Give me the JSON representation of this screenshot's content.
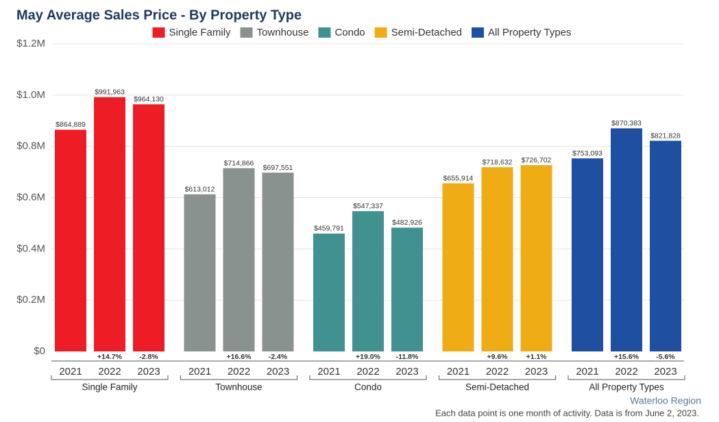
{
  "chart_data": {
    "type": "bar",
    "title": "May Average Sales Price - By Property Type",
    "categories": [
      "2021",
      "2022",
      "2023"
    ],
    "series": [
      {
        "name": "Single Family",
        "color": "#ee1c25",
        "values": [
          864889,
          991963,
          964130
        ],
        "value_labels": [
          "$864,889",
          "$991,963",
          "$964,130"
        ],
        "changes": [
          null,
          "+14.7%",
          "-2.8%"
        ]
      },
      {
        "name": "Townhouse",
        "color": "#8a9290",
        "values": [
          613012,
          714866,
          697551
        ],
        "value_labels": [
          "$613,012",
          "$714,866",
          "$697,551"
        ],
        "changes": [
          null,
          "+16.6%",
          "-2.4%"
        ]
      },
      {
        "name": "Condo",
        "color": "#419191",
        "values": [
          459791,
          547337,
          482926
        ],
        "value_labels": [
          "$459,791",
          "$547,337",
          "$482,926"
        ],
        "changes": [
          null,
          "+19.0%",
          "-11.8%"
        ]
      },
      {
        "name": "Semi-Detached",
        "color": "#efac14",
        "values": [
          655914,
          718632,
          726702
        ],
        "value_labels": [
          "$655,914",
          "$718,632",
          "$726,702"
        ],
        "changes": [
          null,
          "+9.6%",
          "+1.1%"
        ]
      },
      {
        "name": "All Property Types",
        "color": "#1e4fa0",
        "values": [
          753093,
          870383,
          821828
        ],
        "value_labels": [
          "$753,093",
          "$870,383",
          "$821,828"
        ],
        "changes": [
          null,
          "+15.6%",
          "-5.6%"
        ]
      }
    ],
    "ylim": [
      0,
      1200000
    ],
    "yticks": [
      {
        "value": 0,
        "label": "$0"
      },
      {
        "value": 200000,
        "label": "$0.2M"
      },
      {
        "value": 400000,
        "label": "$0.4M"
      },
      {
        "value": 600000,
        "label": "$0.6M"
      },
      {
        "value": 800000,
        "label": "$0.8M"
      },
      {
        "value": 1000000,
        "label": "$1.0M"
      },
      {
        "value": 1200000,
        "label": "$1.2M"
      }
    ],
    "grid": true,
    "legend": "top",
    "region": "Waterloo Region",
    "footnote": "Each data point is one month of activity. Data is from June 2, 2023."
  }
}
